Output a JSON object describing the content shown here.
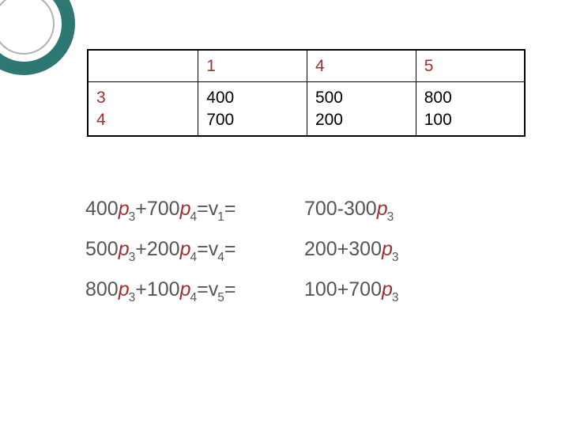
{
  "decoration": {
    "outer_color": "#2f7772",
    "inner_ring_color": "#b0b0b0",
    "background": "#ffffff"
  },
  "table": {
    "header_color": "#a03030",
    "text_color": "#333333",
    "border_color": "#000000",
    "font_size": 21,
    "columns": [
      "",
      "1",
      "4",
      "5"
    ],
    "row_header_lines": [
      "3",
      "4"
    ],
    "data_rows": [
      [
        "400",
        "500",
        "800"
      ],
      [
        "700",
        "200",
        "100"
      ]
    ]
  },
  "equations": {
    "font_size": 25,
    "text_color": "#555555",
    "var_color": "#a03030",
    "rows": [
      {
        "left": {
          "a": "400",
          "b": "700",
          "rhs_var": "v",
          "rhs_sub": "1"
        },
        "right": {
          "c": "700",
          "op": "-",
          "d": "300"
        }
      },
      {
        "left": {
          "a": "500",
          "b": "200",
          "rhs_var": "v",
          "rhs_sub": "4"
        },
        "right": {
          "c": "200",
          "op": "+",
          "d": "300"
        }
      },
      {
        "left": {
          "a": "800",
          "b": "100",
          "rhs_var": "v",
          "rhs_sub": "5"
        },
        "right": {
          "c": "100",
          "op": "+",
          "d": "700"
        }
      }
    ],
    "p_label": "p",
    "sub3": "3",
    "sub4": "4"
  }
}
